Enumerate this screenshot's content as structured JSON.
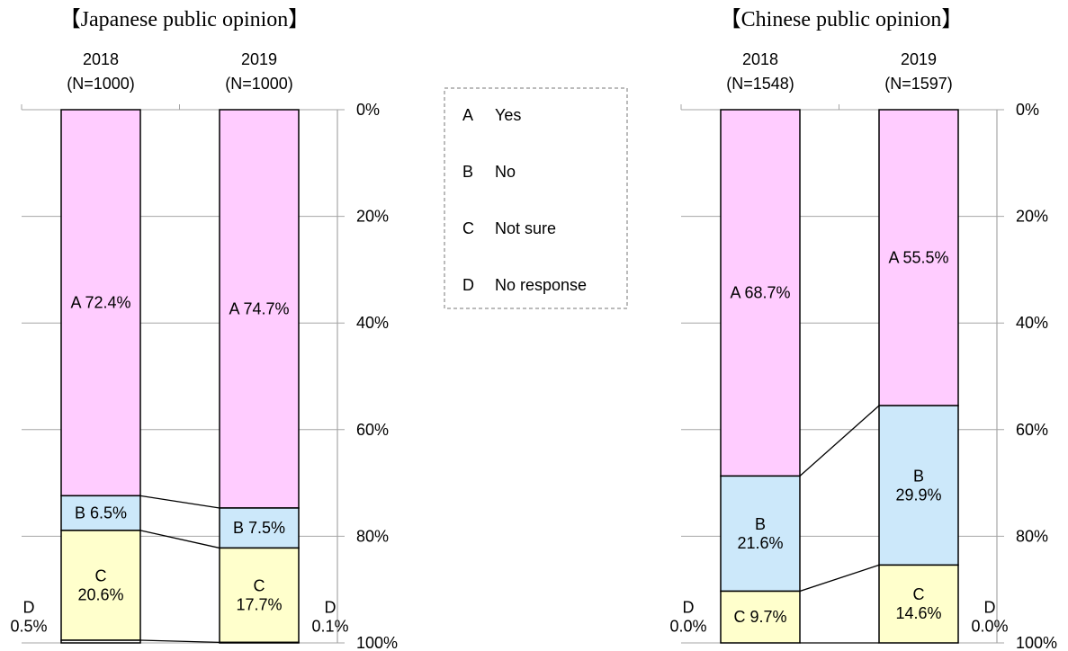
{
  "legend": {
    "items": [
      {
        "key": "A",
        "label": "Yes"
      },
      {
        "key": "B",
        "label": "No"
      },
      {
        "key": "C",
        "label": "Not sure"
      },
      {
        "key": "D",
        "label": "No response"
      }
    ]
  },
  "colors": {
    "A": "#ffccff",
    "B": "#cce8fa",
    "C": "#ffffcc",
    "D": "#ffffff"
  },
  "chart_data": [
    {
      "type": "bar",
      "title": "【Japanese public opinion】",
      "stacked": true,
      "axis": {
        "ticks": [
          "0%",
          "20%",
          "40%",
          "60%",
          "80%",
          "100%"
        ],
        "ylim": [
          0,
          100
        ],
        "grid": true
      },
      "categories": [
        {
          "year": "2018",
          "n": "(N=1000)"
        },
        {
          "year": "2019",
          "n": "(N=1000)"
        }
      ],
      "series": [
        {
          "name": "A",
          "values": [
            72.4,
            74.7
          ],
          "labels": [
            "A 72.4%",
            "A 74.7%"
          ]
        },
        {
          "name": "B",
          "values": [
            6.5,
            7.5
          ],
          "labels": [
            "B 6.5%",
            "B 7.5%"
          ]
        },
        {
          "name": "C",
          "values": [
            20.6,
            17.7
          ],
          "labels": [
            "C\n20.6%",
            "C\n17.7%"
          ]
        },
        {
          "name": "D",
          "values": [
            0.5,
            0.1
          ],
          "labels": [
            "D\n0.5%",
            "D\n0.1%"
          ]
        }
      ]
    },
    {
      "type": "bar",
      "title": "【Chinese public opinion】",
      "stacked": true,
      "axis": {
        "ticks": [
          "0%",
          "20%",
          "40%",
          "60%",
          "80%",
          "100%"
        ],
        "ylim": [
          0,
          100
        ],
        "grid": true
      },
      "categories": [
        {
          "year": "2018",
          "n": "(N=1548)"
        },
        {
          "year": "2019",
          "n": "(N=1597)"
        }
      ],
      "series": [
        {
          "name": "A",
          "values": [
            68.7,
            55.5
          ],
          "labels": [
            "A 68.7%",
            "A 55.5%"
          ]
        },
        {
          "name": "B",
          "values": [
            21.6,
            29.9
          ],
          "labels": [
            "B\n21.6%",
            "B\n29.9%"
          ]
        },
        {
          "name": "C",
          "values": [
            9.7,
            14.6
          ],
          "labels": [
            "C 9.7%",
            "C\n14.6%"
          ]
        },
        {
          "name": "D",
          "values": [
            0.0,
            0.0
          ],
          "labels": [
            "D\n0.0%",
            "D\n0.0%"
          ]
        }
      ]
    }
  ]
}
